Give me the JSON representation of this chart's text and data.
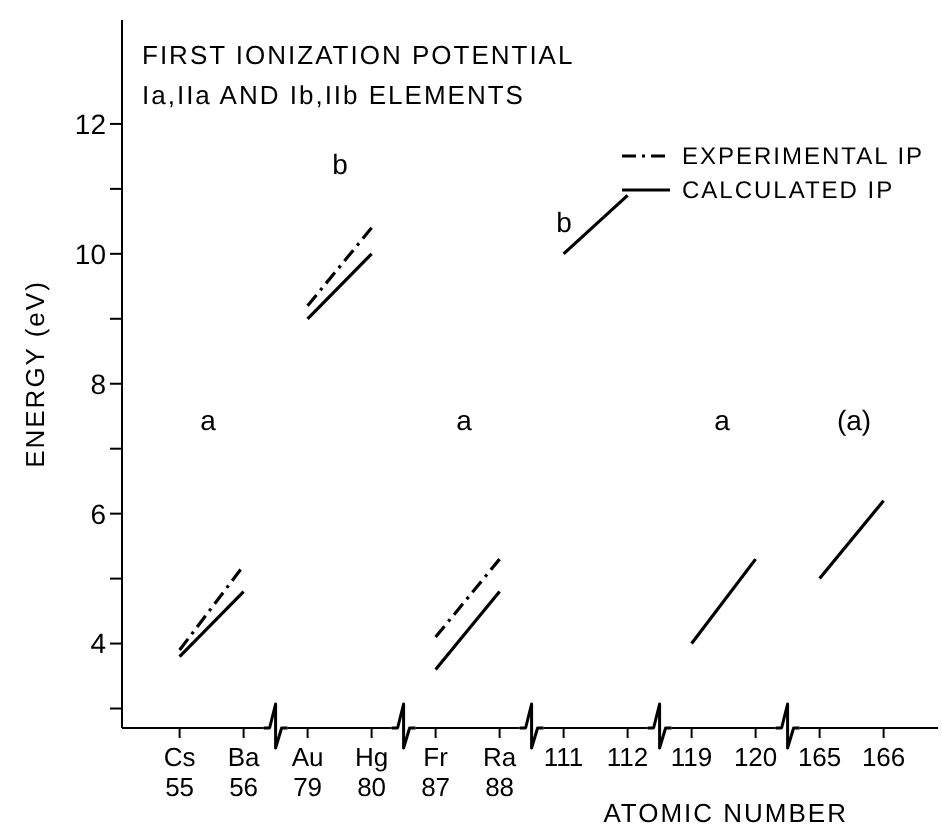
{
  "chart_data": {
    "type": "line",
    "title": "FIRST IONIZATION POTENTIAL",
    "subtitle": "Ia,IIa AND Ib,IIb ELEMENTS",
    "xlabel": "ATOMIC NUMBER",
    "ylabel": "ENERGY (eV)",
    "categories": [
      "Cs 55",
      "Ba 56",
      "Au 79",
      "Hg 80",
      "Fr 87",
      "Ra 88",
      "111",
      "112",
      "119",
      "120",
      "165",
      "166"
    ],
    "series": [
      {
        "name": "EXPERIMENTAL IP",
        "color": "#000000",
        "line_style": "dashed",
        "values": [
          3.9,
          5.2,
          null,
          null,
          null,
          null,
          null,
          null,
          null,
          null,
          null,
          null
        ]
      },
      {
        "color": "#000000",
        "line_style": "dashed",
        "values": [
          null,
          null,
          9.2,
          10.4,
          null,
          null,
          null,
          null,
          null,
          null,
          null,
          null
        ]
      },
      {
        "color": "#000000",
        "line_style": "dashed",
        "values": [
          null,
          null,
          null,
          null,
          4.1,
          5.3,
          null,
          null,
          null,
          null,
          null,
          null
        ]
      },
      {
        "name": "CALCULATED IP",
        "color": "#000000",
        "line_style": "solid",
        "values": [
          3.8,
          4.8,
          null,
          null,
          null,
          null,
          null,
          null,
          null,
          null,
          null,
          null
        ]
      },
      {
        "color": "#000000",
        "line_style": "solid",
        "values": [
          null,
          null,
          9.0,
          10.0,
          null,
          null,
          null,
          null,
          null,
          null,
          null,
          null
        ]
      },
      {
        "color": "#000000",
        "line_style": "solid",
        "values": [
          null,
          null,
          null,
          null,
          3.6,
          4.8,
          null,
          null,
          null,
          null,
          null,
          null
        ]
      },
      {
        "color": "#000000",
        "line_style": "solid",
        "values": [
          null,
          null,
          null,
          null,
          null,
          null,
          10.0,
          10.9,
          null,
          null,
          null,
          null
        ]
      },
      {
        "color": "#000000",
        "line_style": "solid",
        "values": [
          null,
          null,
          null,
          null,
          null,
          null,
          null,
          null,
          4.0,
          5.3,
          null,
          null
        ]
      },
      {
        "color": "#000000",
        "line_style": "solid",
        "values": [
          null,
          null,
          null,
          null,
          null,
          null,
          null,
          null,
          null,
          null,
          5.0,
          6.2
        ]
      }
    ],
    "annotations": [
      "a",
      "b",
      "a",
      "b",
      "a",
      "(a)"
    ],
    "ylim": [
      2.7,
      13.6
    ],
    "yticks": [
      {
        "value": 3,
        "label": null
      },
      4,
      {
        "value": 5,
        "label": null
      },
      6,
      {
        "value": 7,
        "label": null
      },
      8,
      {
        "value": 9,
        "label": null
      },
      10,
      {
        "value": 11,
        "label": null
      },
      12
    ],
    "grid": false,
    "legend": "top right",
    "marker": "none"
  }
}
